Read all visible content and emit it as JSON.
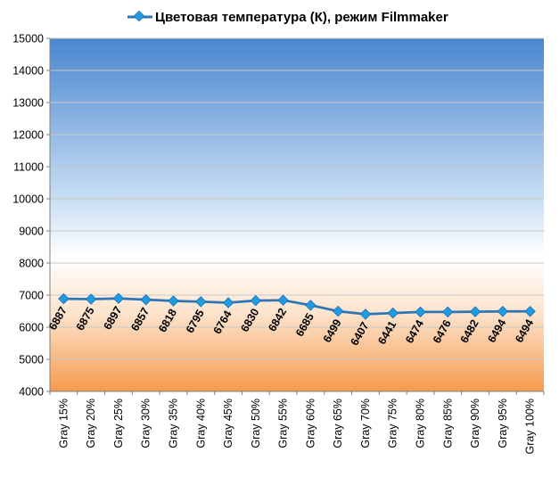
{
  "chart_data": {
    "type": "line",
    "title": "",
    "xlabel": "",
    "ylabel": "",
    "ylim": [
      4000,
      15000
    ],
    "ytick_step": 1000,
    "grid": true,
    "legend_placement": "top",
    "categories": [
      "Gray 15%",
      "Gray 20%",
      "Gray 25%",
      "Gray 30%",
      "Gray 35%",
      "Gray 40%",
      "Gray 45%",
      "Gray 50%",
      "Gray 55%",
      "Gray 60%",
      "Gray 65%",
      "Gray 70%",
      "Gray 75%",
      "Gray 80%",
      "Gray 85%",
      "Gray 90%",
      "Gray 95%",
      "Gray 100%"
    ],
    "series": [
      {
        "name": "Цветовая температура (К), режим Filmmaker",
        "color": "#2F75B5",
        "marker_color": "#1F9BE0",
        "values": [
          6887,
          6875,
          6897,
          6857,
          6818,
          6795,
          6764,
          6830,
          6842,
          6685,
          6499,
          6407,
          6441,
          6474,
          6476,
          6482,
          6494,
          6494
        ]
      }
    ],
    "background_gradient": {
      "top": "#4A86D0",
      "middle": "#FFFFFF",
      "bottom": "#F59B4E"
    }
  }
}
